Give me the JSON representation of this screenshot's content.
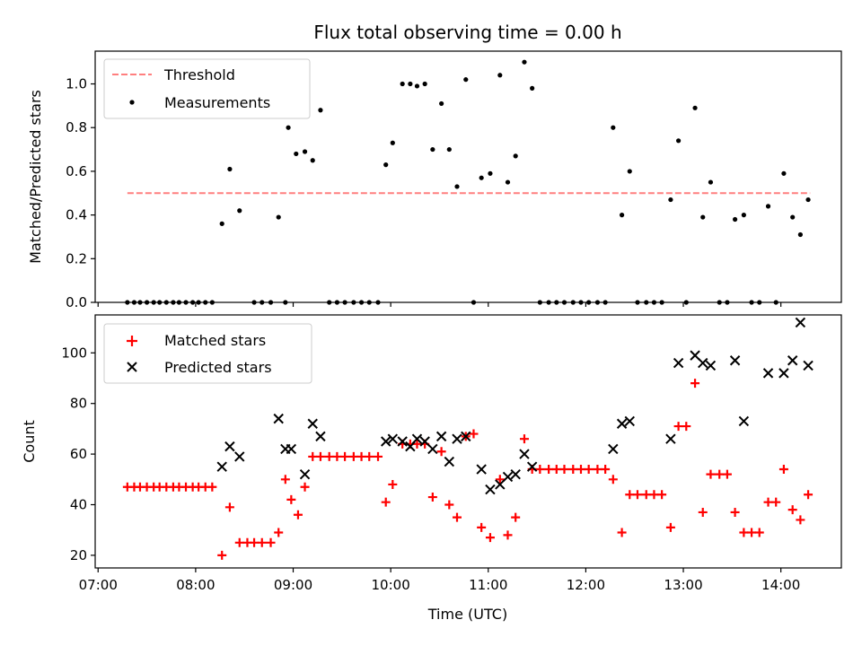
{
  "chart_data": {
    "type": "scatter",
    "title": "Flux total observing time = 0.00 h",
    "x_tick_labels": [
      "07:00",
      "08:00",
      "09:00",
      "10:00",
      "11:00",
      "12:00",
      "13:00",
      "14:00"
    ],
    "xlabel": "Time (UTC)",
    "xlim_hours": [
      6.97,
      14.62
    ],
    "panels": [
      {
        "name": "ratio",
        "ylabel": "Matched/Predicted stars",
        "ylim": [
          0,
          1.15
        ],
        "y_ticks": [
          0.0,
          0.2,
          0.4,
          0.6,
          0.8,
          1.0
        ],
        "y_tick_labels": [
          "0.0",
          "0.2",
          "0.4",
          "0.6",
          "0.8",
          "1.0"
        ],
        "legend_position": "upper-left",
        "threshold": {
          "name": "Threshold",
          "value": 0.5,
          "x_start": 7.3,
          "x_end": 14.3,
          "color": "#ff7f7f"
        },
        "series": [
          {
            "name": "Measurements",
            "color": "#000000",
            "x": [
              7.3,
              7.37,
              7.43,
              7.5,
              7.57,
              7.63,
              7.7,
              7.77,
              7.83,
              7.9,
              7.97,
              8.03,
              8.1,
              8.17,
              8.27,
              8.35,
              8.45,
              8.6,
              8.68,
              8.77,
              8.85,
              8.92,
              8.95,
              9.03,
              9.12,
              9.2,
              9.28,
              9.37,
              9.45,
              9.53,
              9.62,
              9.7,
              9.78,
              9.87,
              9.95,
              10.02,
              10.12,
              10.2,
              10.27,
              10.35,
              10.43,
              10.52,
              10.6,
              10.68,
              10.77,
              10.85,
              10.93,
              11.02,
              11.12,
              11.2,
              11.28,
              11.37,
              11.45,
              11.53,
              11.62,
              11.7,
              11.78,
              11.87,
              11.95,
              12.03,
              12.12,
              12.2,
              12.28,
              12.37,
              12.45,
              12.53,
              12.62,
              12.7,
              12.78,
              12.87,
              12.95,
              13.03,
              13.12,
              13.2,
              13.28,
              13.37,
              13.45,
              13.53,
              13.62,
              13.7,
              13.78,
              13.87,
              13.95,
              14.03,
              14.12,
              14.2,
              14.28
            ],
            "values": [
              0,
              0,
              0,
              0,
              0,
              0,
              0,
              0,
              0,
              0,
              0,
              0,
              0,
              0,
              0.36,
              0.61,
              0.42,
              0,
              0,
              0,
              0.39,
              0,
              0.8,
              0.68,
              0.69,
              0.65,
              0.88,
              0,
              0,
              0,
              0,
              0,
              0,
              0,
              0.63,
              0.73,
              1.0,
              1.0,
              0.99,
              1.0,
              0.7,
              0.91,
              0.7,
              0.53,
              1.02,
              0,
              0.57,
              0.59,
              1.04,
              0.55,
              0.67,
              1.1,
              0.98,
              0,
              0,
              0,
              0,
              0,
              0,
              0,
              0,
              0,
              0.8,
              0.4,
              0.6,
              0,
              0,
              0,
              0,
              0.47,
              0.74,
              0,
              0.89,
              0.39,
              0.55,
              0,
              0,
              0.38,
              0.4,
              0,
              0,
              0.44,
              0,
              0.59,
              0.39,
              0.31,
              0.47
            ]
          }
        ]
      },
      {
        "name": "counts",
        "ylabel": "Count",
        "ylim": [
          15,
          115
        ],
        "y_ticks": [
          20,
          40,
          60,
          80,
          100
        ],
        "y_tick_labels": [
          "20",
          "40",
          "60",
          "80",
          "100"
        ],
        "legend_position": "upper-left",
        "series": [
          {
            "name": "Matched stars",
            "marker": "+",
            "color": "#ff0000",
            "x": [
              7.3,
              7.37,
              7.43,
              7.5,
              7.57,
              7.63,
              7.7,
              7.77,
              7.83,
              7.9,
              7.97,
              8.03,
              8.1,
              8.17,
              8.27,
              8.35,
              8.45,
              8.53,
              8.6,
              8.68,
              8.77,
              8.85,
              8.92,
              8.98,
              9.05,
              9.12,
              9.2,
              9.28,
              9.37,
              9.45,
              9.53,
              9.62,
              9.7,
              9.78,
              9.87,
              9.95,
              10.02,
              10.12,
              10.2,
              10.27,
              10.35,
              10.43,
              10.52,
              10.6,
              10.68,
              10.77,
              10.85,
              10.93,
              11.02,
              11.12,
              11.2,
              11.28,
              11.37,
              11.45,
              11.53,
              11.62,
              11.7,
              11.78,
              11.87,
              11.95,
              12.03,
              12.12,
              12.2,
              12.28,
              12.37,
              12.45,
              12.53,
              12.62,
              12.7,
              12.78,
              12.87,
              12.95,
              13.03,
              13.12,
              13.2,
              13.28,
              13.37,
              13.45,
              13.53,
              13.62,
              13.7,
              13.78,
              13.87,
              13.95,
              14.03,
              14.12,
              14.2,
              14.28
            ],
            "values": [
              47,
              47,
              47,
              47,
              47,
              47,
              47,
              47,
              47,
              47,
              47,
              47,
              47,
              47,
              20,
              39,
              25,
              25,
              25,
              25,
              25,
              29,
              50,
              42,
              36,
              47,
              59,
              59,
              59,
              59,
              59,
              59,
              59,
              59,
              59,
              41,
              48,
              64,
              64,
              64,
              64,
              43,
              61,
              40,
              35,
              67,
              68,
              31,
              27,
              50,
              28,
              35,
              66,
              54,
              54,
              54,
              54,
              54,
              54,
              54,
              54,
              54,
              54,
              50,
              29,
              44,
              44,
              44,
              44,
              44,
              31,
              71,
              71,
              88,
              37,
              52,
              52,
              52,
              37,
              29,
              29,
              29,
              41,
              41,
              54,
              38,
              34,
              44
            ]
          },
          {
            "name": "Predicted stars",
            "marker": "x",
            "color": "#000000",
            "x": [
              8.27,
              8.35,
              8.45,
              8.85,
              8.92,
              8.98,
              9.12,
              9.2,
              9.28,
              9.95,
              10.02,
              10.12,
              10.2,
              10.27,
              10.35,
              10.43,
              10.52,
              10.6,
              10.68,
              10.77,
              10.93,
              11.02,
              11.12,
              11.2,
              11.28,
              11.37,
              11.45,
              12.28,
              12.37,
              12.45,
              12.87,
              12.95,
              13.12,
              13.2,
              13.28,
              13.53,
              13.62,
              13.87,
              14.03,
              14.12,
              14.2,
              14.28
            ],
            "values": [
              55,
              63,
              59,
              74,
              62,
              62,
              52,
              72,
              67,
              65,
              66,
              65,
              63,
              66,
              65,
              62,
              67,
              57,
              66,
              67,
              54,
              46,
              48,
              51,
              52,
              60,
              55,
              62,
              72,
              73,
              66,
              96,
              99,
              96,
              95,
              97,
              73,
              92,
              92,
              97,
              112,
              95
            ]
          }
        ]
      }
    ]
  }
}
